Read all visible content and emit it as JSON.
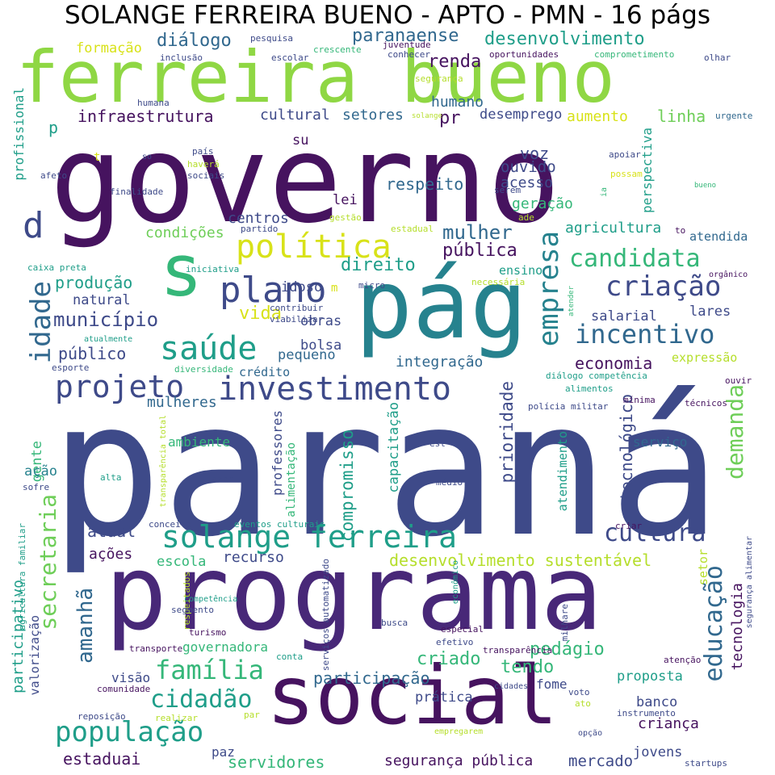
{
  "title": "SOLANGE FERREIRA BUENO - APTO - PMN - 16 págs",
  "palette": {
    "dark_purple": "#46135f",
    "purple": "#482878",
    "indigo": "#3e4a89",
    "blue": "#31688e",
    "teal": "#26828e",
    "green": "#1f9e89",
    "sea_green": "#35b779",
    "light_green": "#6ece58",
    "lime": "#b5de2b",
    "yellow": "#fde725"
  },
  "words": [
    {
      "text": "paraná",
      "color": "#3e4a89"
    },
    {
      "text": "governo",
      "color": "#46135f"
    },
    {
      "text": "programa",
      "color": "#482878"
    },
    {
      "text": "social",
      "color": "#46135f"
    },
    {
      "text": "pág",
      "color": "#26828e"
    },
    {
      "text": "ferreira bueno",
      "color": "#8fd744"
    },
    {
      "text": "s",
      "color": "#35b779"
    },
    {
      "text": "política",
      "color": "#d8e219"
    },
    {
      "text": "empresa",
      "color": "#26828e"
    },
    {
      "text": "idade",
      "color": "#31688e"
    },
    {
      "text": "d",
      "color": "#3e4a89"
    },
    {
      "text": "plano",
      "color": "#3e4a89"
    },
    {
      "text": "saúde",
      "color": "#1f9e89"
    },
    {
      "text": "investimento",
      "color": "#3e4a89"
    },
    {
      "text": "projeto",
      "color": "#3e4a89"
    },
    {
      "text": "candidata",
      "color": "#35b779"
    },
    {
      "text": "criação",
      "color": "#3e4a89"
    },
    {
      "text": "incentivo",
      "color": "#31688e"
    },
    {
      "text": "solange ferreira",
      "color": "#1f9e89"
    },
    {
      "text": "cultura",
      "color": "#3e4a89"
    },
    {
      "text": "demanda",
      "color": "#6ece58"
    },
    {
      "text": "secretaria",
      "color": "#6ece58"
    },
    {
      "text": "amanhã",
      "color": "#31688e"
    },
    {
      "text": "educação",
      "color": "#31688e"
    },
    {
      "text": "tecnologia",
      "color": "#46135f"
    },
    {
      "text": "família",
      "color": "#35b779"
    },
    {
      "text": "cidadão",
      "color": "#1f9e89"
    },
    {
      "text": "população",
      "color": "#1f9e89"
    },
    {
      "text": "mulher",
      "color": "#31688e"
    },
    {
      "text": "paranaense",
      "color": "#31688e"
    },
    {
      "text": "desenvolvimento",
      "color": "#1f9e89"
    },
    {
      "text": "diálogo",
      "color": "#31688e"
    },
    {
      "text": "formação",
      "color": "#d8e219"
    },
    {
      "text": "infraestrutura",
      "color": "#46135f"
    },
    {
      "text": "cultural",
      "color": "#3e4a89"
    },
    {
      "text": "setores",
      "color": "#31688e"
    },
    {
      "text": "renda",
      "color": "#46135f"
    },
    {
      "text": "humano",
      "color": "#31688e"
    },
    {
      "text": "pr",
      "color": "#46135f"
    },
    {
      "text": "desemprego",
      "color": "#3e4a89"
    },
    {
      "text": "aumento",
      "color": "#d8e219"
    },
    {
      "text": "linha",
      "color": "#6ece58"
    },
    {
      "text": "p",
      "color": "#1f9e89"
    },
    {
      "text": "su",
      "color": "#46135f"
    },
    {
      "text": "voz",
      "color": "#3e4a89"
    },
    {
      "text": "ouvido",
      "color": "#3e4a89"
    },
    {
      "text": "respeito",
      "color": "#31688e"
    },
    {
      "text": "acesso",
      "color": "#3e4a89"
    },
    {
      "text": "lei",
      "color": "#46135f"
    },
    {
      "text": "geração",
      "color": "#35b779"
    },
    {
      "text": "centros",
      "color": "#3e4a89"
    },
    {
      "text": "condições",
      "color": "#6ece58"
    },
    {
      "text": "agricultura",
      "color": "#1f9e89"
    },
    {
      "text": "atendida",
      "color": "#31688e"
    },
    {
      "text": "pública",
      "color": "#46135f"
    },
    {
      "text": "direito",
      "color": "#1f9e89"
    },
    {
      "text": "produção",
      "color": "#1f9e89"
    },
    {
      "text": "idoso",
      "color": "#3e4a89"
    },
    {
      "text": "ensino",
      "color": "#1f9e89"
    },
    {
      "text": "natural",
      "color": "#3e4a89"
    },
    {
      "text": "vida",
      "color": "#d8e219"
    },
    {
      "text": "obras",
      "color": "#3e4a89"
    },
    {
      "text": "município",
      "color": "#3e4a89"
    },
    {
      "text": "salarial",
      "color": "#3e4a89"
    },
    {
      "text": "lares",
      "color": "#3e4a89"
    },
    {
      "text": "público",
      "color": "#3e4a89"
    },
    {
      "text": "bolsa",
      "color": "#3e4a89"
    },
    {
      "text": "pequeno",
      "color": "#31688e"
    },
    {
      "text": "integração",
      "color": "#31688e"
    },
    {
      "text": "economia",
      "color": "#46135f"
    },
    {
      "text": "expressão",
      "color": "#b5de2b"
    },
    {
      "text": "crédito",
      "color": "#31688e"
    },
    {
      "text": "mulheres",
      "color": "#31688e"
    },
    {
      "text": "prioridade",
      "color": "#3e4a89"
    },
    {
      "text": "tecnológico",
      "color": "#3e4a89"
    },
    {
      "text": "professores",
      "color": "#3e4a89"
    },
    {
      "text": "alimentação",
      "color": "#35b779"
    },
    {
      "text": "compromisso",
      "color": "#1f9e89"
    },
    {
      "text": "capacitação",
      "color": "#1f9e89"
    },
    {
      "text": "atendimento",
      "color": "#1f9e89"
    },
    {
      "text": "ambiente",
      "color": "#35b779"
    },
    {
      "text": "serviço",
      "color": "#31688e"
    },
    {
      "text": "gente",
      "color": "#35b779"
    },
    {
      "text": "ação",
      "color": "#26828e"
    },
    {
      "text": "atual",
      "color": "#3e4a89"
    },
    {
      "text": "ações",
      "color": "#46135f"
    },
    {
      "text": "recurso",
      "color": "#3e4a89"
    },
    {
      "text": "escola",
      "color": "#35b779"
    },
    {
      "text": "desenvolvimento sustentável",
      "color": "#b5de2b"
    },
    {
      "text": "setor",
      "color": "#b5de2b"
    },
    {
      "text": "pedágio",
      "color": "#35b779"
    },
    {
      "text": "criado",
      "color": "#35b779"
    },
    {
      "text": "tendo",
      "color": "#35b779"
    },
    {
      "text": "proposta",
      "color": "#1f9e89"
    },
    {
      "text": "participação",
      "color": "#31688e"
    },
    {
      "text": "visão",
      "color": "#3e4a89"
    },
    {
      "text": "governadora",
      "color": "#35b779"
    },
    {
      "text": "banco",
      "color": "#3e4a89"
    },
    {
      "text": "criança",
      "color": "#46135f"
    },
    {
      "text": "fome",
      "color": "#3e4a89"
    },
    {
      "text": "prática",
      "color": "#3e4a89"
    },
    {
      "text": "participativo",
      "color": "#1f9e89"
    },
    {
      "text": "valorização",
      "color": "#3e4a89"
    },
    {
      "text": "estaduai",
      "color": "#46135f"
    },
    {
      "text": "paz",
      "color": "#3e4a89"
    },
    {
      "text": "servidores",
      "color": "#35b779"
    },
    {
      "text": "segurança pública",
      "color": "#46135f"
    },
    {
      "text": "mercado",
      "color": "#3e4a89"
    },
    {
      "text": "jovens",
      "color": "#3e4a89"
    },
    {
      "text": "startups",
      "color": "#3e4a89"
    },
    {
      "text": "perspectiva",
      "color": "#1f9e89"
    },
    {
      "text": "profissional",
      "color": "#1f9e89"
    },
    {
      "text": "m",
      "color": "#d8e219"
    },
    {
      "text": "t",
      "color": "#d8e219"
    },
    {
      "text": "pesquisa",
      "color": "#3e4a89"
    },
    {
      "text": "juventude",
      "color": "#46135f"
    },
    {
      "text": "conhecer",
      "color": "#3e4a89"
    },
    {
      "text": "escolar",
      "color": "#3e4a89"
    },
    {
      "text": "crescente",
      "color": "#35b779"
    },
    {
      "text": "oportunidades",
      "color": "#46135f"
    },
    {
      "text": "comprometimento",
      "color": "#35b779"
    },
    {
      "text": "olhar",
      "color": "#3e4a89"
    },
    {
      "text": "inclusão",
      "color": "#3e4a89"
    },
    {
      "text": "humana",
      "color": "#3e4a89"
    },
    {
      "text": "segurança",
      "color": "#b5de2b"
    },
    {
      "text": "solange",
      "color": "#b5de2b"
    },
    {
      "text": "urgente",
      "color": "#31688e"
    },
    {
      "text": "país",
      "color": "#3e4a89"
    },
    {
      "text": "so",
      "color": "#3e4a89"
    },
    {
      "text": "haverá",
      "color": "#b5de2b"
    },
    {
      "text": "sociais",
      "color": "#3e4a89"
    },
    {
      "text": "afeto",
      "color": "#3e4a89"
    },
    {
      "text": "finalidade",
      "color": "#3e4a89"
    },
    {
      "text": "apoiar",
      "color": "#3e4a89"
    },
    {
      "text": "possam",
      "color": "#d8e219"
    },
    {
      "text": "serem",
      "color": "#3e4a89"
    },
    {
      "text": "bueno",
      "color": "#35b779"
    },
    {
      "text": "ia",
      "color": "#35b779"
    },
    {
      "text": "ade",
      "color": "#b5de2b"
    },
    {
      "text": "gestão",
      "color": "#b5de2b"
    },
    {
      "text": "estadual",
      "color": "#b5de2b"
    },
    {
      "text": "partido",
      "color": "#3e4a89"
    },
    {
      "text": "to",
      "color": "#46135f"
    },
    {
      "text": "caixa preta",
      "color": "#1f9e89"
    },
    {
      "text": "iniciativa",
      "color": "#1f9e89"
    },
    {
      "text": "micro",
      "color": "#3e4a89"
    },
    {
      "text": "necessária",
      "color": "#b5de2b"
    },
    {
      "text": "orgânico",
      "color": "#46135f"
    },
    {
      "text": "contribuir",
      "color": "#3e4a89"
    },
    {
      "text": "viabilizar",
      "color": "#3e4a89"
    },
    {
      "text": "atender",
      "color": "#35b779"
    },
    {
      "text": "atualmente",
      "color": "#1f9e89"
    },
    {
      "text": "esporte",
      "color": "#3e4a89"
    },
    {
      "text": "diversidade",
      "color": "#35b779"
    },
    {
      "text": "diálogo competência",
      "color": "#1f9e89"
    },
    {
      "text": "alimentos",
      "color": "#1f9e89"
    },
    {
      "text": "ouvir",
      "color": "#46135f"
    },
    {
      "text": "polícia militar",
      "color": "#3e4a89"
    },
    {
      "text": "mínima",
      "color": "#46135f"
    },
    {
      "text": "técnicos",
      "color": "#46135f"
    },
    {
      "text": "transparência total",
      "color": "#b5de2b"
    },
    {
      "text": "est",
      "color": "#3e4a89"
    },
    {
      "text": "alta",
      "color": "#1f9e89"
    },
    {
      "text": "lazer",
      "color": "#3e4a89"
    },
    {
      "text": "médio",
      "color": "#3e4a89"
    },
    {
      "text": "sofre",
      "color": "#3e4a89"
    },
    {
      "text": "agricultura familiar",
      "color": "#1f9e89"
    },
    {
      "text": "conceito",
      "color": "#3e4a89"
    },
    {
      "text": "eventos culturais",
      "color": "#1f9e89"
    },
    {
      "text": "criar",
      "color": "#46135f"
    },
    {
      "text": "respeitados",
      "color": "#b5de2b"
    },
    {
      "text": "competência",
      "color": "#1f9e89"
    },
    {
      "text": "segmento",
      "color": "#3e4a89"
    },
    {
      "text": "serviços automatizado",
      "color": "#3e4a89"
    },
    {
      "text": "econômico",
      "color": "#1f9e89"
    },
    {
      "text": "milhare",
      "color": "#3e4a89"
    },
    {
      "text": "segurança alimentar",
      "color": "#3e4a89"
    },
    {
      "text": "turismo",
      "color": "#46135f"
    },
    {
      "text": "busca",
      "color": "#3e4a89"
    },
    {
      "text": "especial",
      "color": "#46135f"
    },
    {
      "text": "efetivo",
      "color": "#3e4a89"
    },
    {
      "text": "transporte",
      "color": "#46135f"
    },
    {
      "text": "transparência",
      "color": "#46135f"
    },
    {
      "text": "atenção",
      "color": "#46135f"
    },
    {
      "text": "conta",
      "color": "#1f9e89"
    },
    {
      "text": "comunidade",
      "color": "#46135f"
    },
    {
      "text": "cidades",
      "color": "#3e4a89"
    },
    {
      "text": "voto",
      "color": "#3e4a89"
    },
    {
      "text": "ato",
      "color": "#b5de2b"
    },
    {
      "text": "reposição",
      "color": "#3e4a89"
    },
    {
      "text": "realizar",
      "color": "#b5de2b"
    },
    {
      "text": "par",
      "color": "#b5de2b"
    },
    {
      "text": "instrumento",
      "color": "#3e4a89"
    },
    {
      "text": "empregarem",
      "color": "#b5de2b"
    },
    {
      "text": "opção",
      "color": "#3e4a89"
    }
  ]
}
